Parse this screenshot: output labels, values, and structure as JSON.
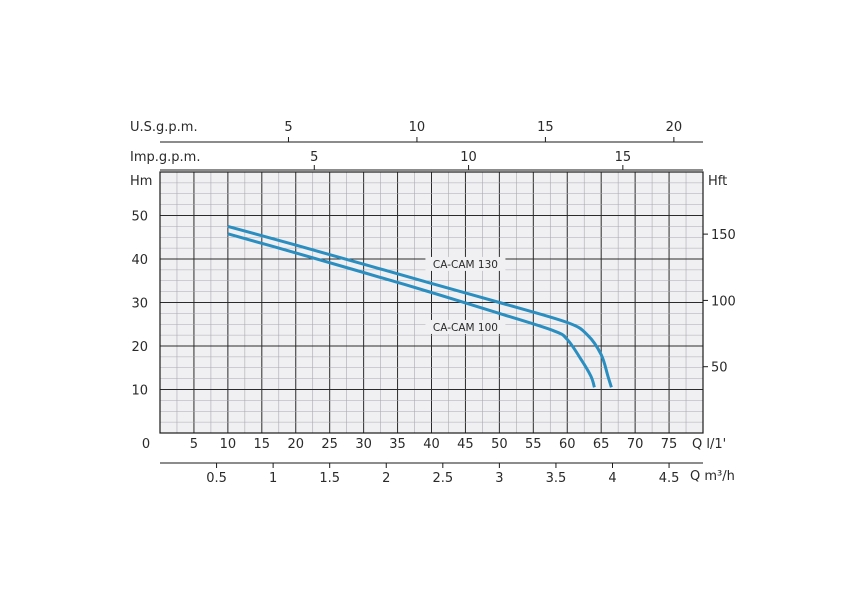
{
  "chart_data": {
    "type": "line",
    "title": "",
    "xlabel": "Q l/1'",
    "ylabel": "Hm",
    "secondary_ylabel": "Hft",
    "xlim": [
      0,
      80
    ],
    "ylim": [
      0,
      60
    ],
    "x_ticks": [
      0,
      5,
      10,
      15,
      20,
      25,
      30,
      35,
      40,
      45,
      50,
      55,
      60,
      65,
      70,
      75
    ],
    "y_ticks": [
      10,
      20,
      30,
      40,
      50
    ],
    "hft_ticks": [
      50,
      100,
      150
    ],
    "axes": {
      "x_unit_label": "Q  l/1'",
      "m3h_label": "Q  m³/h",
      "m3h_ticks": [
        "0.5",
        "1",
        "1.5",
        "2",
        "2.5",
        "3",
        "3.5",
        "4",
        "4.5"
      ],
      "usgpm_label": "U.S.g.p.m.",
      "usgpm_ticks": [
        5,
        10,
        15,
        20
      ],
      "impgpm_label": "Imp.g.p.m.",
      "impgpm_ticks": [
        5,
        10,
        15
      ]
    },
    "grid": true,
    "series": [
      {
        "name": "CA-CAM 130",
        "color": "#2a8fc0",
        "x": [
          10,
          20,
          30,
          40,
          50,
          60,
          63,
          65,
          66,
          66.5
        ],
        "y": [
          47.5,
          43.2,
          38.8,
          34.4,
          30,
          25.4,
          22.5,
          18,
          13,
          10.5
        ]
      },
      {
        "name": "CA-CAM 100",
        "color": "#2a8fc0",
        "x": [
          10,
          20,
          30,
          40,
          50,
          58,
          60,
          62,
          63.5,
          64
        ],
        "y": [
          45.8,
          41.4,
          36.9,
          32.3,
          27.5,
          23.5,
          21.5,
          17,
          13,
          10.5
        ]
      }
    ]
  }
}
